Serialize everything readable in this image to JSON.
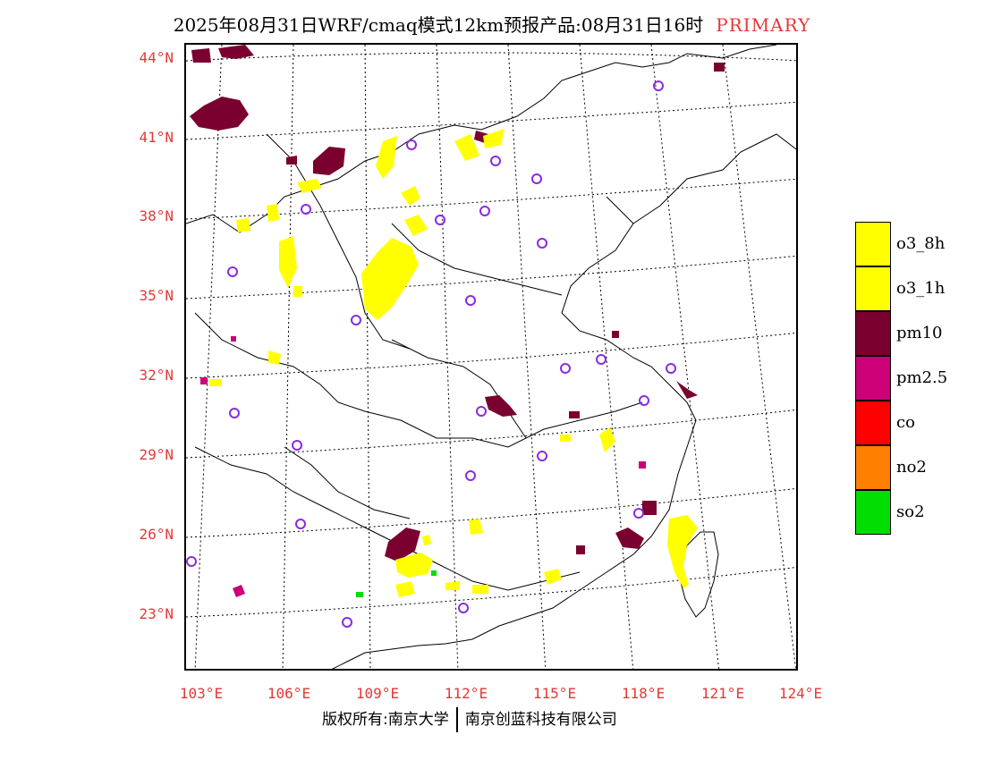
{
  "title": {
    "main": "2025年08月31日WRF/cmaq模式12km预报产品:08月31日16时",
    "tag": "PRIMARY"
  },
  "axes": {
    "lat_labels": [
      "44°N",
      "41°N",
      "38°N",
      "35°N",
      "32°N",
      "29°N",
      "26°N",
      "23°N"
    ],
    "lon_labels": [
      "103°E",
      "106°E",
      "109°E",
      "112°E",
      "115°E",
      "118°E",
      "121°E",
      "124°E"
    ]
  },
  "legend": [
    {
      "label": "o3_8h",
      "color": "#ffff00"
    },
    {
      "label": "o3_1h",
      "color": "#ffff00"
    },
    {
      "label": "pm10",
      "color": "#7a0030"
    },
    {
      "label": "pm2.5",
      "color": "#cc0077"
    },
    {
      "label": "co",
      "color": "#ff0000"
    },
    {
      "label": "no2",
      "color": "#ff7f00"
    },
    {
      "label": "so2",
      "color": "#00dd00"
    }
  ],
  "footer": {
    "left": "版权所有:南京大学",
    "right": "南京创蓝科技有限公司"
  }
}
